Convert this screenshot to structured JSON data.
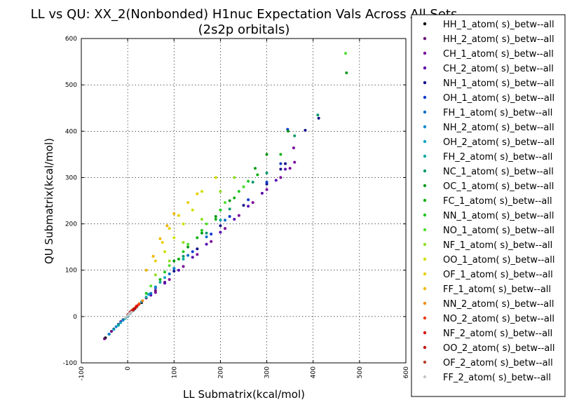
{
  "chart_data": {
    "type": "scatter",
    "title": "LL vs QU: XX_2(Nonbonded) H1nuc Expectation Vals Across All Sets\n(2s2p orbitals)",
    "xlabel": "LL Submatrix(kcal/mol)",
    "ylabel": "QU Submatrix(kcal/mol)",
    "xlim": [
      -100,
      600
    ],
    "ylim": [
      -100,
      600
    ],
    "xticks": [
      -100,
      0,
      100,
      200,
      300,
      400,
      500,
      600
    ],
    "yticks": [
      -100,
      0,
      100,
      200,
      300,
      400,
      500,
      600
    ],
    "grid": true,
    "legend_position": "outside-right",
    "series": [
      {
        "name": "HH_1_atom( s)_betw--all",
        "color": "#000000",
        "points": [
          [
            -48,
            -46
          ],
          [
            -40,
            -38
          ],
          [
            -30,
            -27
          ],
          [
            -20,
            -17
          ],
          [
            -10,
            -7
          ],
          [
            0,
            3
          ],
          [
            15,
            17
          ],
          [
            30,
            30
          ]
        ]
      },
      {
        "name": "HH_2_atom( s)_betw--all",
        "color": "#6a0a7a",
        "points": [
          [
            -50,
            -48
          ],
          [
            -35,
            -32
          ],
          [
            -15,
            -11
          ],
          [
            5,
            9
          ],
          [
            20,
            22
          ],
          [
            40,
            40
          ],
          [
            60,
            56
          ],
          [
            80,
            74
          ]
        ]
      },
      {
        "name": "CH_1_atom( s)_betw--all",
        "color": "#7a0a9a",
        "points": [
          [
            60,
            52
          ],
          [
            90,
            80
          ],
          [
            120,
            108
          ],
          [
            150,
            134
          ],
          [
            180,
            162
          ],
          [
            210,
            190
          ],
          [
            240,
            218
          ],
          [
            270,
            246
          ],
          [
            300,
            274
          ],
          [
            330,
            300
          ],
          [
            350,
            320
          ],
          [
            360,
            333
          ],
          [
            358,
            364
          ]
        ]
      },
      {
        "name": "CH_2_atom( s)_betw--all",
        "color": "#5a0ab0",
        "points": [
          [
            50,
            46
          ],
          [
            80,
            72
          ],
          [
            110,
            100
          ],
          [
            140,
            128
          ],
          [
            170,
            156
          ],
          [
            200,
            182
          ],
          [
            230,
            210
          ],
          [
            260,
            238
          ],
          [
            290,
            266
          ],
          [
            320,
            294
          ],
          [
            340,
            318
          ]
        ]
      },
      {
        "name": "NH_1_atom( s)_betw--all",
        "color": "#10108a",
        "points": [
          [
            100,
            98
          ],
          [
            150,
            146
          ],
          [
            200,
            196
          ],
          [
            250,
            240
          ],
          [
            300,
            286
          ],
          [
            330,
            318
          ],
          [
            340,
            330
          ],
          [
            383,
            402
          ],
          [
            412,
            428
          ]
        ]
      },
      {
        "name": "OH_1_atom( s)_betw--all",
        "color": "#0a3acc",
        "points": [
          [
            60,
            62
          ],
          [
            100,
            104
          ],
          [
            140,
            140
          ],
          [
            180,
            178
          ],
          [
            220,
            216
          ],
          [
            260,
            252
          ],
          [
            300,
            290
          ],
          [
            330,
            330
          ],
          [
            345,
            404
          ]
        ]
      },
      {
        "name": "FH_1_atom( s)_betw--all",
        "color": "#0a6ec8",
        "points": [
          [
            -20,
            -18
          ],
          [
            0,
            2
          ],
          [
            20,
            22
          ],
          [
            50,
            50
          ],
          [
            90,
            92
          ],
          [
            130,
            132
          ],
          [
            170,
            172
          ],
          [
            210,
            208
          ]
        ]
      },
      {
        "name": "NH_2_atom( s)_betw--all",
        "color": "#0a8ad0",
        "points": [
          [
            -40,
            -38
          ],
          [
            -25,
            -22
          ],
          [
            -10,
            -8
          ],
          [
            5,
            6
          ],
          [
            15,
            16
          ],
          [
            30,
            32
          ],
          [
            60,
            64
          ],
          [
            100,
            104
          ]
        ]
      },
      {
        "name": "OH_2_atom( s)_betw--all",
        "color": "#0aa2c8",
        "points": [
          [
            -30,
            -28
          ],
          [
            -15,
            -13
          ],
          [
            0,
            0
          ],
          [
            12,
            13
          ],
          [
            25,
            27
          ],
          [
            45,
            48
          ],
          [
            80,
            84
          ]
        ]
      },
      {
        "name": "FH_2_atom( s)_betw--all",
        "color": "#0aa8a0",
        "points": [
          [
            -20,
            -19
          ],
          [
            -5,
            -4
          ],
          [
            8,
            9
          ],
          [
            20,
            21
          ],
          [
            40,
            42
          ],
          [
            70,
            74
          ],
          [
            120,
            124
          ],
          [
            200,
            208
          ]
        ]
      },
      {
        "name": "NC_1_atom( s)_betw--all",
        "color": "#0a9a6e",
        "points": [
          [
            120,
            130
          ],
          [
            170,
            180
          ],
          [
            220,
            232
          ],
          [
            270,
            290
          ],
          [
            300,
            310
          ],
          [
            360,
            390
          ],
          [
            410,
            435
          ]
        ]
      },
      {
        "name": "OC_1_atom( s)_betw--all",
        "color": "#0a9a1a",
        "points": [
          [
            100,
            120
          ],
          [
            130,
            150
          ],
          [
            160,
            180
          ],
          [
            190,
            216
          ],
          [
            220,
            250
          ],
          [
            250,
            280
          ],
          [
            275,
            320
          ],
          [
            300,
            350
          ],
          [
            346,
            400
          ],
          [
            472,
            526
          ]
        ]
      },
      {
        "name": "FC_1_atom( s)_betw--all",
        "color": "#10b010",
        "points": [
          [
            70,
            80
          ],
          [
            110,
            124
          ],
          [
            150,
            170
          ],
          [
            190,
            210
          ],
          [
            230,
            256
          ],
          [
            280,
            306
          ],
          [
            330,
            350
          ]
        ]
      },
      {
        "name": "NN_1_atom( s)_betw--all",
        "color": "#20c820",
        "points": [
          [
            40,
            50
          ],
          [
            80,
            96
          ],
          [
            120,
            140
          ],
          [
            160,
            186
          ],
          [
            200,
            230
          ],
          [
            240,
            270
          ],
          [
            260,
            292
          ]
        ]
      },
      {
        "name": "NO_1_atom( s)_betw--all",
        "color": "#50e030",
        "points": [
          [
            50,
            66
          ],
          [
            90,
            110
          ],
          [
            130,
            156
          ],
          [
            170,
            200
          ],
          [
            210,
            246
          ],
          [
            250,
            280
          ],
          [
            470,
            568
          ]
        ]
      },
      {
        "name": "NF_1_atom( s)_betw--all",
        "color": "#90e020",
        "points": [
          [
            60,
            90
          ],
          [
            90,
            120
          ],
          [
            120,
            160
          ],
          [
            160,
            210
          ],
          [
            200,
            270
          ],
          [
            230,
            300
          ]
        ]
      },
      {
        "name": "OO_1_atom( s)_betw--all",
        "color": "#d0e000",
        "points": [
          [
            80,
            140
          ],
          [
            100,
            170
          ],
          [
            120,
            200
          ],
          [
            140,
            230
          ],
          [
            160,
            270
          ],
          [
            190,
            300
          ]
        ]
      },
      {
        "name": "OF_1_atom( s)_betw--all",
        "color": "#e8d000",
        "points": [
          [
            60,
            120
          ],
          [
            75,
            160
          ],
          [
            90,
            190
          ],
          [
            110,
            218
          ],
          [
            130,
            246
          ],
          [
            150,
            265
          ]
        ]
      },
      {
        "name": "FF_1_atom( s)_betw--all",
        "color": "#f0b800",
        "points": [
          [
            40,
            100
          ],
          [
            55,
            130
          ],
          [
            70,
            168
          ],
          [
            85,
            196
          ],
          [
            100,
            222
          ]
        ]
      },
      {
        "name": "NN_2_atom( s)_betw--all",
        "color": "#f08c10",
        "points": [
          [
            10,
            14
          ],
          [
            18,
            22
          ],
          [
            25,
            28
          ],
          [
            32,
            34
          ]
        ]
      },
      {
        "name": "NO_2_atom( s)_betw--all",
        "color": "#f03810",
        "points": [
          [
            5,
            8
          ],
          [
            12,
            14
          ],
          [
            18,
            20
          ],
          [
            24,
            26
          ]
        ]
      },
      {
        "name": "NF_2_atom( s)_betw--all",
        "color": "#e01010",
        "points": [
          [
            8,
            12
          ],
          [
            14,
            17
          ],
          [
            20,
            23
          ]
        ]
      },
      {
        "name": "OO_2_atom( s)_betw--all",
        "color": "#c01010",
        "points": [
          [
            6,
            10
          ],
          [
            12,
            15
          ],
          [
            16,
            18
          ]
        ]
      },
      {
        "name": "OF_2_atom( s)_betw--all",
        "color": "#b84030",
        "points": [
          [
            0,
            4
          ],
          [
            4,
            7
          ],
          [
            8,
            10
          ]
        ]
      },
      {
        "name": "FF_2_atom( s)_betw--all",
        "color": "#c8c8c8",
        "points": [
          [
            -5,
            -2
          ],
          [
            0,
            2
          ],
          [
            4,
            6
          ],
          [
            8,
            9
          ]
        ]
      }
    ]
  }
}
